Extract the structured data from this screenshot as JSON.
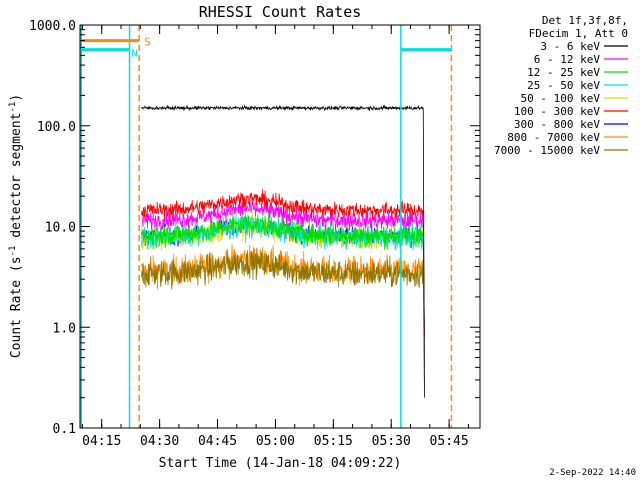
{
  "chart_data": {
    "type": "line",
    "title": "RHESSI Count Rates",
    "xlabel": "Start Time (14-Jan-18 04:09:22)",
    "ylabel": "Count Rate (s⁻¹ detector segment⁻¹)",
    "y_scale": "log",
    "ylim": [
      0.1,
      1000
    ],
    "xlim_minutes": [
      249.37,
      353.0
    ],
    "x_ticks": [
      "04:15",
      "04:30",
      "04:45",
      "05:00",
      "05:15",
      "05:30",
      "05:45"
    ],
    "y_ticks": [
      "1000.0",
      "100.0",
      "10.0",
      "1.0",
      "0.1"
    ],
    "legend_header": [
      "Det 1f,3f,8f,",
      "FDecim 1, Att 0"
    ],
    "legend_position": "right-outside",
    "series": [
      {
        "name": "3 - 6 keV",
        "color": "#000000",
        "level": 150,
        "noise": 0.02
      },
      {
        "name": "6 - 12 keV",
        "color": "#ff00ff",
        "level": 11.5,
        "noise": 0.1
      },
      {
        "name": "12 - 25 keV",
        "color": "#00e000",
        "level": 8.2,
        "noise": 0.12
      },
      {
        "name": "25 - 50 keV",
        "color": "#00e0e0",
        "level": 7.8,
        "noise": 0.13
      },
      {
        "name": "50 - 100 keV",
        "color": "#e0e000",
        "level": 7.6,
        "noise": 0.13
      },
      {
        "name": "100 - 300 keV",
        "color": "#ff0000",
        "level": 14.5,
        "noise": 0.09
      },
      {
        "name": "300 - 800 keV",
        "color": "#0000ff",
        "level": 8.0,
        "noise": 0.1
      },
      {
        "name": "800 - 7000 keV",
        "color": "#ff8c00",
        "level": 3.6,
        "noise": 0.16
      },
      {
        "name": "7000 - 15000 keV",
        "color": "#8b7500",
        "level": 3.4,
        "noise": 0.16
      }
    ],
    "data_window_minutes": [
      265.3,
      338.3
    ],
    "rise_factor": 1.3,
    "rise_peak_minute": 293,
    "markers": {
      "saa_lines_minutes": [
        249.7,
        262.2,
        332.5
      ],
      "night_lines_minutes": [
        264.7,
        345.6
      ],
      "saa_bar": {
        "from": 249.7,
        "to": 262.2,
        "value": 570
      },
      "saa_bar_right": {
        "from": 332.5,
        "to": 345.6,
        "value": 570
      },
      "orange_bar": {
        "from": 249.7,
        "to": 264.7,
        "value": 700
      },
      "s_label": "S",
      "n_label": "N"
    }
  },
  "footer_date": "2-Sep-2022 14:40"
}
